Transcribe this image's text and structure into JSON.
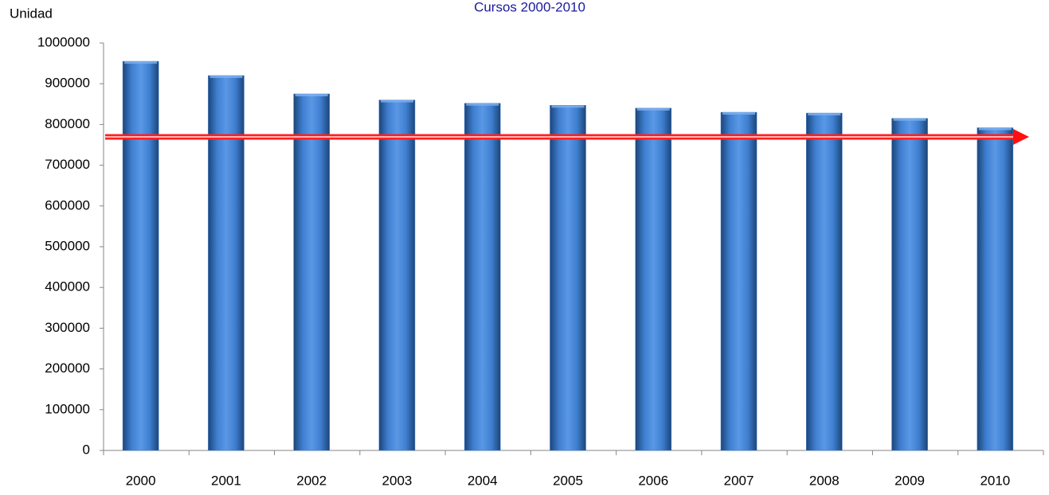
{
  "chart_data": {
    "type": "bar",
    "title": "Cursos 2000-2010",
    "y_label": "Unidad",
    "categories": [
      "2000",
      "2001",
      "2002",
      "2003",
      "2004",
      "2005",
      "2006",
      "2007",
      "2008",
      "2009",
      "2010"
    ],
    "values": [
      955000,
      920000,
      875000,
      860000,
      852000,
      847000,
      840000,
      830000,
      828000,
      815000,
      792000
    ],
    "color": "#3f7fd0",
    "ylim": [
      0,
      1000000
    ],
    "yticks": [
      0,
      100000,
      200000,
      300000,
      400000,
      500000,
      600000,
      700000,
      800000,
      900000,
      1000000
    ],
    "grid": false
  }
}
